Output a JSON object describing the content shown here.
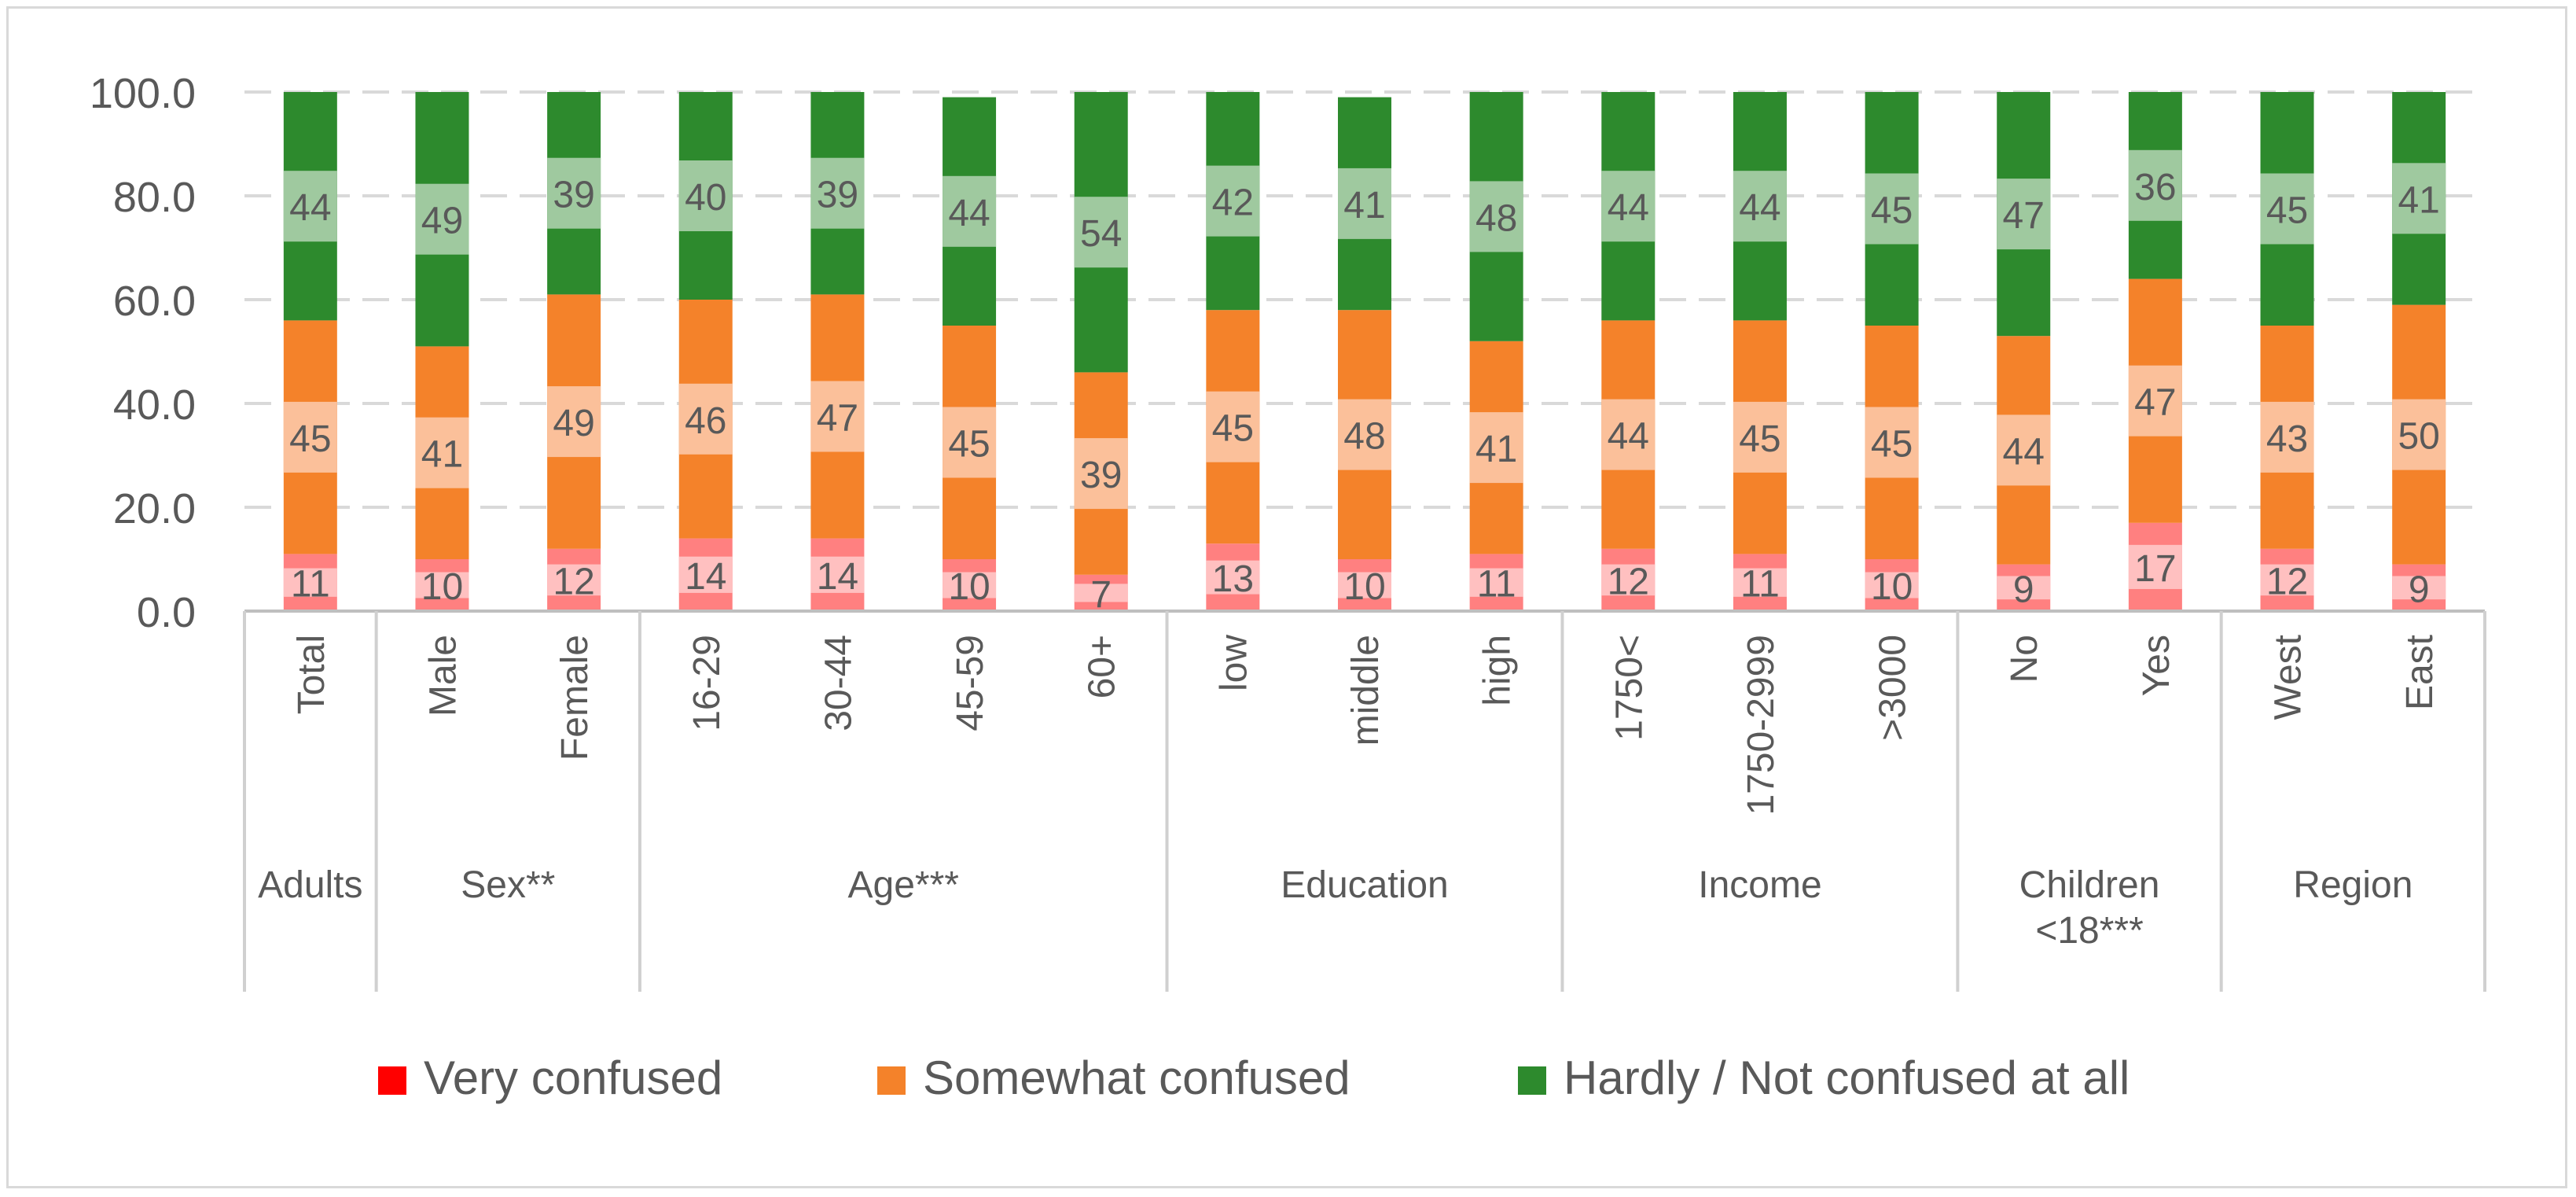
{
  "chart_data": {
    "type": "bar",
    "stacked": true,
    "ylim": [
      0,
      100
    ],
    "yticks": [
      "0.0",
      "20.0",
      "40.0",
      "60.0",
      "80.0",
      "100.0"
    ],
    "grid": true,
    "legend_position": "bottom",
    "legend": [
      {
        "label": "Very confused",
        "color": "#ff0000"
      },
      {
        "label": "Somewhat confused",
        "color": "#f4822a"
      },
      {
        "label": "Hardly / Not confused at all",
        "color": "#2d8a2d"
      }
    ],
    "groups": [
      {
        "label": "Adults",
        "categories": [
          "Total"
        ]
      },
      {
        "label": "Sex**",
        "categories": [
          "Male",
          "Female"
        ]
      },
      {
        "label": "Age***",
        "categories": [
          "16-29",
          "30-44",
          "45-59",
          "60+"
        ]
      },
      {
        "label": "Education",
        "categories": [
          "low",
          "middle",
          "high"
        ]
      },
      {
        "label": "Income",
        "categories": [
          "1750<",
          "1750-2999",
          ">3000"
        ]
      },
      {
        "label": "Children\n<18***",
        "categories": [
          "No",
          "Yes"
        ]
      },
      {
        "label": "Region",
        "categories": [
          "West",
          "East"
        ]
      }
    ],
    "categories": [
      "Total",
      "Male",
      "Female",
      "16-29",
      "30-44",
      "45-59",
      "60+",
      "low",
      "middle",
      "high",
      "1750<",
      "1750-2999",
      ">3000",
      "No",
      "Yes",
      "West",
      "East"
    ],
    "series": [
      {
        "name": "Very confused",
        "color": "#ff8080",
        "values": [
          11,
          10,
          12,
          14,
          14,
          10,
          7,
          13,
          10,
          11,
          12,
          11,
          10,
          9,
          17,
          12,
          9
        ],
        "labels": [
          "11",
          "10",
          "12",
          "14",
          "14",
          "10",
          "7",
          "13",
          "10",
          "11",
          "12",
          "11",
          "10",
          "9",
          "17",
          "12",
          "9"
        ]
      },
      {
        "name": "Somewhat confused",
        "color": "#f4822a",
        "values": [
          45,
          41,
          49,
          46,
          47,
          45,
          39,
          45,
          48,
          41,
          44,
          45,
          45,
          44,
          47,
          43,
          50
        ],
        "labels": [
          "45",
          "41",
          "49",
          "46",
          "47",
          "45",
          "39",
          "45",
          "48",
          "41",
          "44",
          "45",
          "45",
          "44",
          "47",
          "43",
          "50"
        ]
      },
      {
        "name": "Hardly / Not confused at all",
        "color": "#2d8a2d",
        "values": [
          44,
          49,
          39,
          40,
          39,
          44,
          54,
          42,
          41,
          48,
          44,
          44,
          45,
          47,
          36,
          45,
          41
        ],
        "labels": [
          "44",
          "49",
          "39",
          "40",
          "39",
          "44",
          "54",
          "42",
          "41",
          "48",
          "44",
          "44",
          "45",
          "47",
          "36",
          "45",
          "41"
        ]
      }
    ]
  }
}
